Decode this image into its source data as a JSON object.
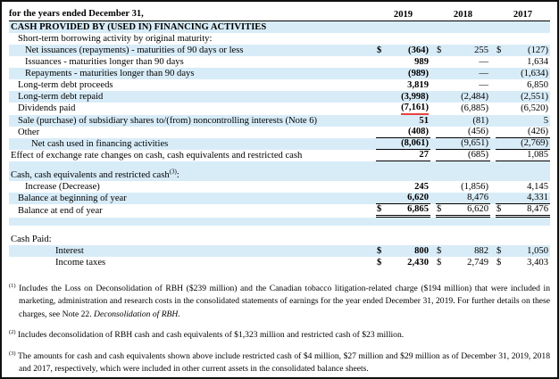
{
  "colors": {
    "row_shade": "#d8ecf8",
    "red_underline": "#e8423a",
    "rule": "#000000"
  },
  "header": {
    "label": "for the years ended December 31,",
    "years": [
      "2019",
      "2018",
      "2017"
    ]
  },
  "table": {
    "rows": [
      {
        "label": "CASH PROVIDED BY (USED IN) FINANCING ACTIVITIES",
        "indent": 0,
        "bold": true,
        "shaded": true,
        "values": null
      },
      {
        "label": "Short-term borrowing activity by original maturity:",
        "indent": 1,
        "values": null
      },
      {
        "label": "Net issuances (repayments) - maturities of 90 days or less",
        "indent": 2,
        "shaded": true,
        "dollar": true,
        "values": [
          "(364)",
          "255",
          "(127)"
        ]
      },
      {
        "label": "Issuances - maturities longer than 90 days",
        "indent": 2,
        "values": [
          "989",
          "—",
          "1,634"
        ]
      },
      {
        "label": "Repayments - maturities longer than 90 days",
        "indent": 2,
        "shaded": true,
        "values": [
          "(989)",
          "—",
          "(1,634)"
        ]
      },
      {
        "label": "Long-term debt proceeds",
        "indent": 1,
        "values": [
          "3,819",
          "—",
          "6,850"
        ]
      },
      {
        "label": "Long-term debt repaid",
        "indent": 1,
        "shaded": true,
        "values": [
          "(3,998)",
          "(2,484)",
          "(2,551)"
        ]
      },
      {
        "label": "Dividends paid",
        "indent": 1,
        "values": [
          "(7,161)",
          "(6,885)",
          "(6,520)"
        ],
        "red_underline": 0
      },
      {
        "label": "Sale (purchase) of subsidiary shares to/(from) noncontrolling interests (Note 6)",
        "indent": 1,
        "shaded": true,
        "values": [
          "51",
          "(81)",
          "5"
        ]
      },
      {
        "label": "Other",
        "indent": 1,
        "values": [
          "(408)",
          "(456)",
          "(426)"
        ],
        "rule": "bottom"
      },
      {
        "label": "Net cash used in financing activities",
        "indent": 3,
        "shaded": true,
        "values": [
          "(8,061)",
          "(9,651)",
          "(2,769)"
        ],
        "rule": "bottom"
      },
      {
        "label": "Effect of exchange rate changes on cash, cash equivalents and restricted cash",
        "indent": 0,
        "values": [
          "27",
          "(685)",
          "1,085"
        ],
        "rule": "bottom"
      },
      {
        "blank": true,
        "shaded": true
      },
      {
        "label": "Cash, cash equivalents and restricted cash",
        "sup": "(3)",
        "suffix": ":",
        "indent": 0,
        "shaded": true,
        "values": null
      },
      {
        "label": "Increase (Decrease)",
        "indent": 2,
        "values": [
          "245",
          "(1,856)",
          "4,145"
        ]
      },
      {
        "label": "Balance at beginning of year",
        "indent": 1,
        "shaded": true,
        "values": [
          "6,620",
          "8,476",
          "4,331"
        ],
        "rule": "bottom"
      },
      {
        "label": "Balance at end of year",
        "indent": 1,
        "dollar": true,
        "values": [
          "6,865",
          "6,620",
          "8,476"
        ],
        "rule": "double"
      },
      {
        "blank": true,
        "shaded": true
      },
      {
        "blank": true
      },
      {
        "label": "Cash Paid:",
        "indent": 0,
        "values": null
      },
      {
        "label": "Interest",
        "indent": 4,
        "shaded": true,
        "dollar": true,
        "values": [
          "800",
          "882",
          "1,050"
        ]
      },
      {
        "label": "Income taxes",
        "indent": 4,
        "dollar": true,
        "values": [
          "2,430",
          "2,749",
          "3,403"
        ]
      }
    ]
  },
  "footnotes": [
    {
      "marker": "(1)",
      "text": "Includes the Loss on Deconsolidation of RBH ($239 million) and the Canadian tobacco litigation-related charge ($194 million) that were included in marketing, administration and research costs in the consolidated statements of earnings for the year ended December 31, 2019. For further details on these charges, see Note 22. ",
      "italic_tail": "Deconsolidation of RBH."
    },
    {
      "marker": "(2)",
      "text": "Includes deconsolidation of RBH cash and cash equivalents of $1,323 million and restricted cash of $23 million.",
      "italic_tail": ""
    },
    {
      "marker": "(3)",
      "text": "The amounts for cash and cash equivalents shown above include restricted cash of $4 million, $27 million and $29 million as of December 31, 2019, 2018 and 2017, respectively, which were included in other current assets in the consolidated balance sheets.",
      "italic_tail": ""
    }
  ]
}
